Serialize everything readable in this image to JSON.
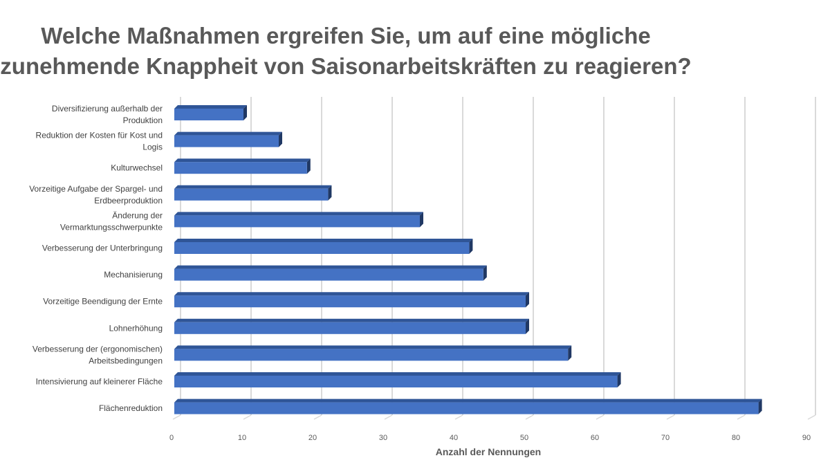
{
  "chart_data": {
    "type": "bar",
    "orientation": "horizontal",
    "title_lines": [
      "Welche Maßnahmen ergreifen Sie, um auf eine mögliche",
      "zunehmende Knappheit von Saisonarbeitskräften zu reagieren?"
    ],
    "xlabel": "Anzahl der Nennungen",
    "ylabel": "",
    "xlim": [
      0,
      90
    ],
    "xticks": [
      "0",
      "10",
      "20",
      "30",
      "40",
      "50",
      "60",
      "70",
      "80",
      "90"
    ],
    "grid": true,
    "bar_color": "#4472C4",
    "categories": [
      [
        "Diversifizierung außerhalb der",
        "Produktion"
      ],
      [
        "Reduktion der Kosten für Kost und",
        "Logis"
      ],
      [
        "Kulturwechsel"
      ],
      [
        "Vorzeitige Aufgabe der Spargel- und",
        "Erdbeerproduktion"
      ],
      [
        "Änderung der",
        "Vermarktungsschwerpunkte"
      ],
      [
        "Verbesserung der Unterbringung"
      ],
      [
        "Mechanisierung"
      ],
      [
        "Vorzeitige Beendigung der Ernte"
      ],
      [
        "Lohnerhöhung"
      ],
      [
        "Verbesserung der (ergonomischen)",
        "Arbeitsbedingungen"
      ],
      [
        "Intensivierung auf kleinerer Fläche"
      ],
      [
        "Flächenreduktion"
      ]
    ],
    "values": [
      10,
      15,
      19,
      22,
      35,
      42,
      44,
      50,
      50,
      56,
      63,
      83
    ]
  }
}
